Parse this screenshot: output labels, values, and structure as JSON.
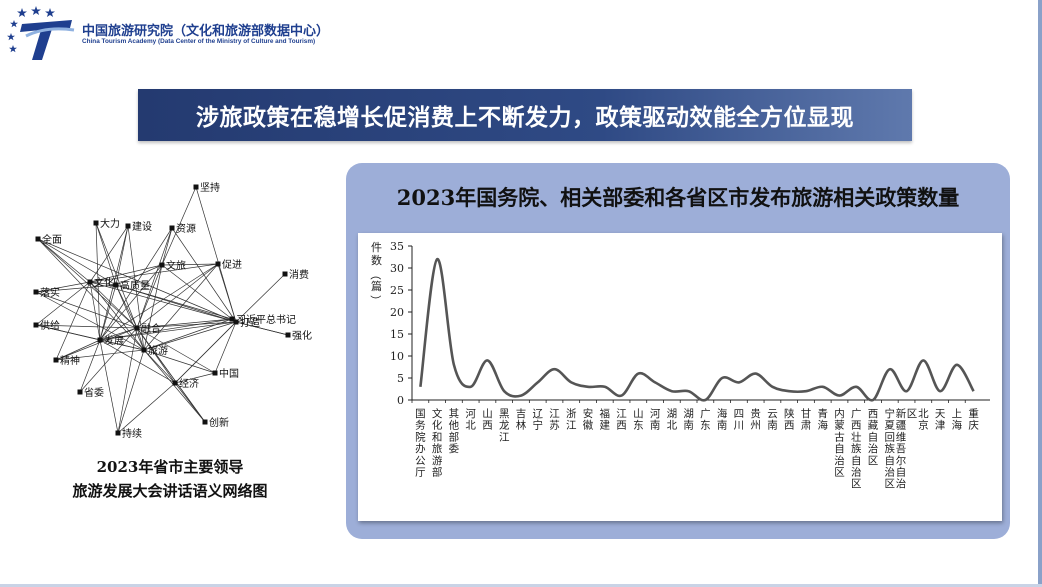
{
  "header": {
    "org_name_cn": "中国旅游研究院（文化和旅游部数据中心）",
    "org_name_en": "China Tourism Academy (Data Center of the Ministry of Culture and Tourism)",
    "logo_icon": "china-tourism-academy-logo-icon"
  },
  "banner": {
    "title": "涉旅政策在稳增长促消费上不断发力，政策驱动效能全方位显现"
  },
  "network": {
    "caption_line1": "2023年省市主要领导",
    "caption_line2": "旅游发展大会讲话语义网络图",
    "nodes": [
      "坚持",
      "大力",
      "建设",
      "资源",
      "全面",
      "文化",
      "文旅",
      "促进",
      "消费",
      "高质量",
      "落实",
      "习近平总书记",
      "打造",
      "供给",
      "融合",
      "强化",
      "精神",
      "发展",
      "旅游",
      "中国",
      "省委",
      "经济",
      "创新",
      "持续"
    ]
  },
  "chart_data": {
    "type": "line",
    "title": "2023年国务院、相关部委和各省区市发布旅游相关政策数量",
    "ylabel": "件数（篇）",
    "ylim": [
      0,
      35
    ],
    "yticks": [
      0,
      5,
      10,
      15,
      20,
      25,
      30,
      35
    ],
    "categories": [
      "国务院办公厅",
      "文化和旅游部",
      "其他部委",
      "河北",
      "山西",
      "黑龙江",
      "吉林",
      "辽宁",
      "江苏",
      "浙江",
      "安徽",
      "福建",
      "江西",
      "山东",
      "河南",
      "湖北",
      "湖南",
      "广东",
      "海南",
      "四川",
      "贵州",
      "云南",
      "陕西",
      "甘肃",
      "青海",
      "内蒙古自治区",
      "广西壮族自治区",
      "西藏自治区",
      "宁夏回族自治区",
      "新疆维吾尔自治区",
      "北京",
      "天津",
      "上海",
      "重庆"
    ],
    "values": [
      3,
      32,
      8,
      3,
      9,
      2,
      1,
      4,
      7,
      4,
      3,
      3,
      1,
      6,
      4,
      2,
      2,
      0,
      5,
      4,
      6,
      3,
      2,
      2,
      3,
      1,
      3,
      0,
      7,
      2,
      9,
      2,
      8,
      2
    ],
    "line_color": "#555555",
    "grid": false
  }
}
